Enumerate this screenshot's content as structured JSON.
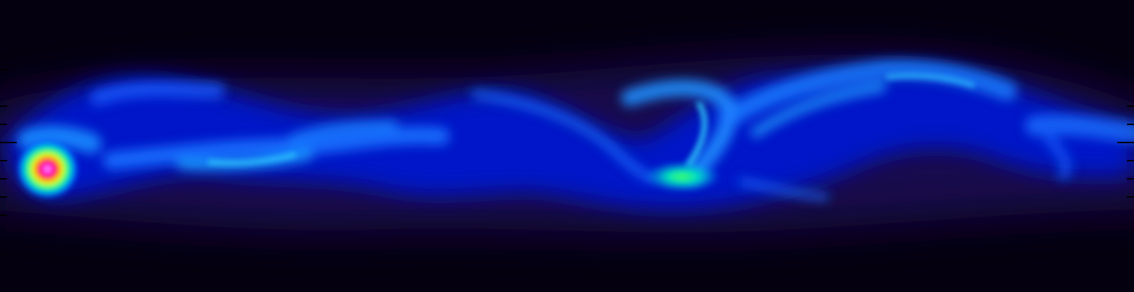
{
  "image": {
    "description_kind": "false-color intensity field",
    "colormap": [
      "#05000f",
      "#1a0060",
      "#0010d0",
      "#0060ff",
      "#00c8ff",
      "#00ff90",
      "#ffff00",
      "#ff0000",
      "#ff00ff",
      "#ffffff"
    ],
    "background_color": "#05000f",
    "frame_tick_color": "#000000"
  }
}
